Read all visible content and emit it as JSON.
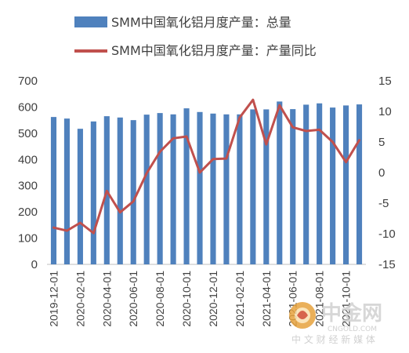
{
  "chart_data": {
    "type": "bar",
    "x": [
      "2019-12-01",
      "2020-01-01",
      "2020-02-01",
      "2020-03-01",
      "2020-04-01",
      "2020-05-01",
      "2020-06-01",
      "2020-07-01",
      "2020-08-01",
      "2020-09-01",
      "2020-10-01",
      "2020-11-01",
      "2020-12-01",
      "2021-01-01",
      "2021-02-01",
      "2021-03-01",
      "2021-04-01",
      "2021-05-01",
      "2021-06-01",
      "2021-07-01",
      "2021-08-01",
      "2021-09-01",
      "2021-10-01",
      "2021-11-01"
    ],
    "xticks": [
      "2019-12-01",
      "2020-02-01",
      "2020-04-01",
      "2020-06-01",
      "2020-08-01",
      "2020-10-01",
      "2020-12-01",
      "2021-02-01",
      "2021-04-01",
      "2021-06-01",
      "2021-08-01",
      "2021-10-01"
    ],
    "series": [
      {
        "name": "SMM中国氧化铝月度产量：总量",
        "type": "bar",
        "axis": "left",
        "color": "#4f81bd",
        "values": [
          562,
          556,
          517,
          545,
          565,
          560,
          550,
          571,
          577,
          572,
          595,
          581,
          575,
          572,
          572,
          591,
          591,
          621,
          592,
          609,
          614,
          598,
          606,
          610
        ]
      },
      {
        "name": "SMM中国氧化铝月度产量：产量同比",
        "type": "line",
        "axis": "right",
        "color": "#c0504d",
        "values": [
          -9.0,
          -9.5,
          -8.2,
          -9.9,
          -3.0,
          -6.5,
          -4.7,
          -0.1,
          3.4,
          5.6,
          5.9,
          0.0,
          2.2,
          2.3,
          9.0,
          11.9,
          4.6,
          11.0,
          7.4,
          6.8,
          7.0,
          5.0,
          1.7,
          5.3
        ]
      }
    ],
    "yticks_left": [
      "0",
      "100",
      "200",
      "300",
      "400",
      "500",
      "600",
      "700"
    ],
    "yticks_right": [
      "-15",
      "-10",
      "-5",
      "0",
      "5",
      "10",
      "15"
    ],
    "ylim_left": [
      0,
      700
    ],
    "ylim_right": [
      -15,
      15
    ],
    "grid": false,
    "legend_placement": "top"
  },
  "watermark": {
    "brand": "中金网",
    "domain": "CNGOLD.COM",
    "slogan": "中 文 财 经 新 媒 体"
  }
}
